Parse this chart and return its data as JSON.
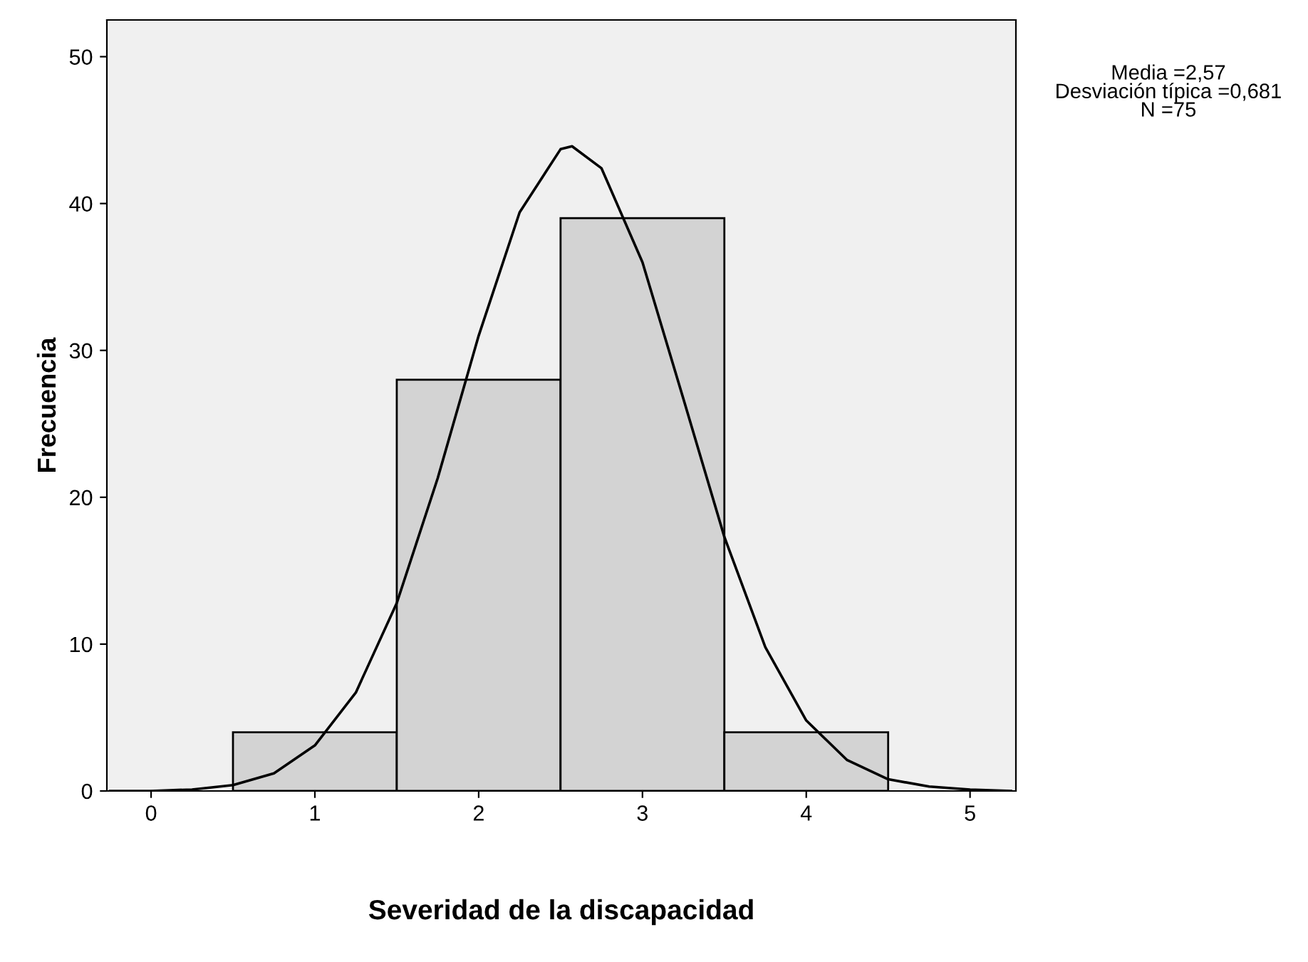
{
  "chart_data": {
    "type": "histogram",
    "xlabel": "Severidad de la discapacidad",
    "ylabel": "Frecuencia",
    "series": [
      {
        "bins": [
          0.5,
          1.5,
          2.5,
          3.5,
          4.5
        ],
        "values": [
          4,
          28,
          39,
          4
        ],
        "color": "#d3d3d3"
      },
      {
        "type": "line",
        "color": "#000000",
        "x": [
          -0.25,
          0,
          0.25,
          0.5,
          0.75,
          1,
          1.25,
          1.5,
          1.75,
          2,
          2.25,
          2.5,
          2.57,
          2.75,
          3,
          3.25,
          3.5,
          3.75,
          4,
          4.25,
          4.5,
          4.75,
          5,
          5.25
        ],
        "values": [
          0,
          0,
          0.1,
          0.4,
          1.2,
          3.1,
          6.7,
          12.8,
          21.3,
          31.0,
          39.4,
          43.7,
          43.9,
          42.4,
          36.0,
          26.7,
          17.3,
          9.8,
          4.8,
          2.1,
          0.8,
          0.3,
          0.1,
          0
        ]
      }
    ],
    "xlim": [
      -0.27,
      5.28
    ],
    "ylim": [
      0,
      52.5
    ],
    "xticks": [
      0,
      1,
      2,
      3,
      4,
      5
    ],
    "yticks": [
      0,
      10,
      20,
      30,
      40,
      50
    ],
    "grid": false,
    "legend": false,
    "line_style": "solid",
    "annotations": [
      "Media =2,57",
      "Desviación típica =0,681",
      "N =75"
    ]
  }
}
